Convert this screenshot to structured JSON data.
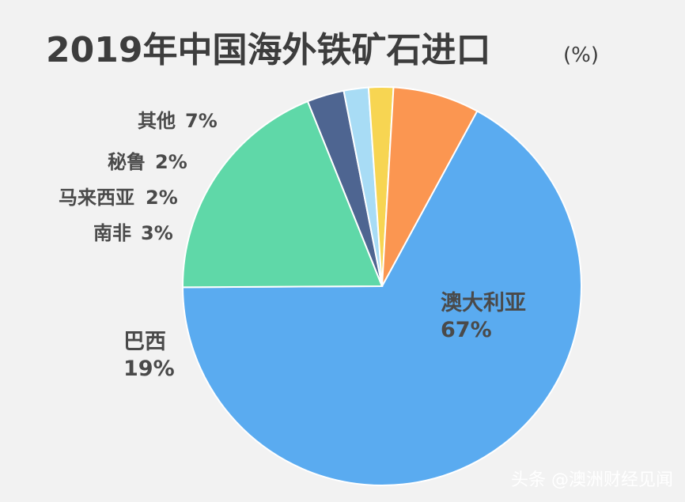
{
  "chart_data": {
    "type": "pie",
    "title": "2019年中国海外铁矿石进口",
    "unit": "(%)",
    "slices": [
      {
        "name": "澳大利亚",
        "value": 67,
        "label": "67%",
        "color": "#5aabf0"
      },
      {
        "name": "巴西",
        "value": 19,
        "label": "19%",
        "color": "#5fd8a8"
      },
      {
        "name": "南非",
        "value": 3,
        "label": "3%",
        "color": "#4e6591"
      },
      {
        "name": "马来西亚",
        "value": 2,
        "label": "2%",
        "color": "#a8dcf5"
      },
      {
        "name": "秘鲁",
        "value": 2,
        "label": "2%",
        "color": "#f7d552"
      },
      {
        "name": "其他",
        "value": 7,
        "label": "7%",
        "color": "#fb9651"
      }
    ]
  },
  "watermark": "头条 @澳洲财经见闻"
}
